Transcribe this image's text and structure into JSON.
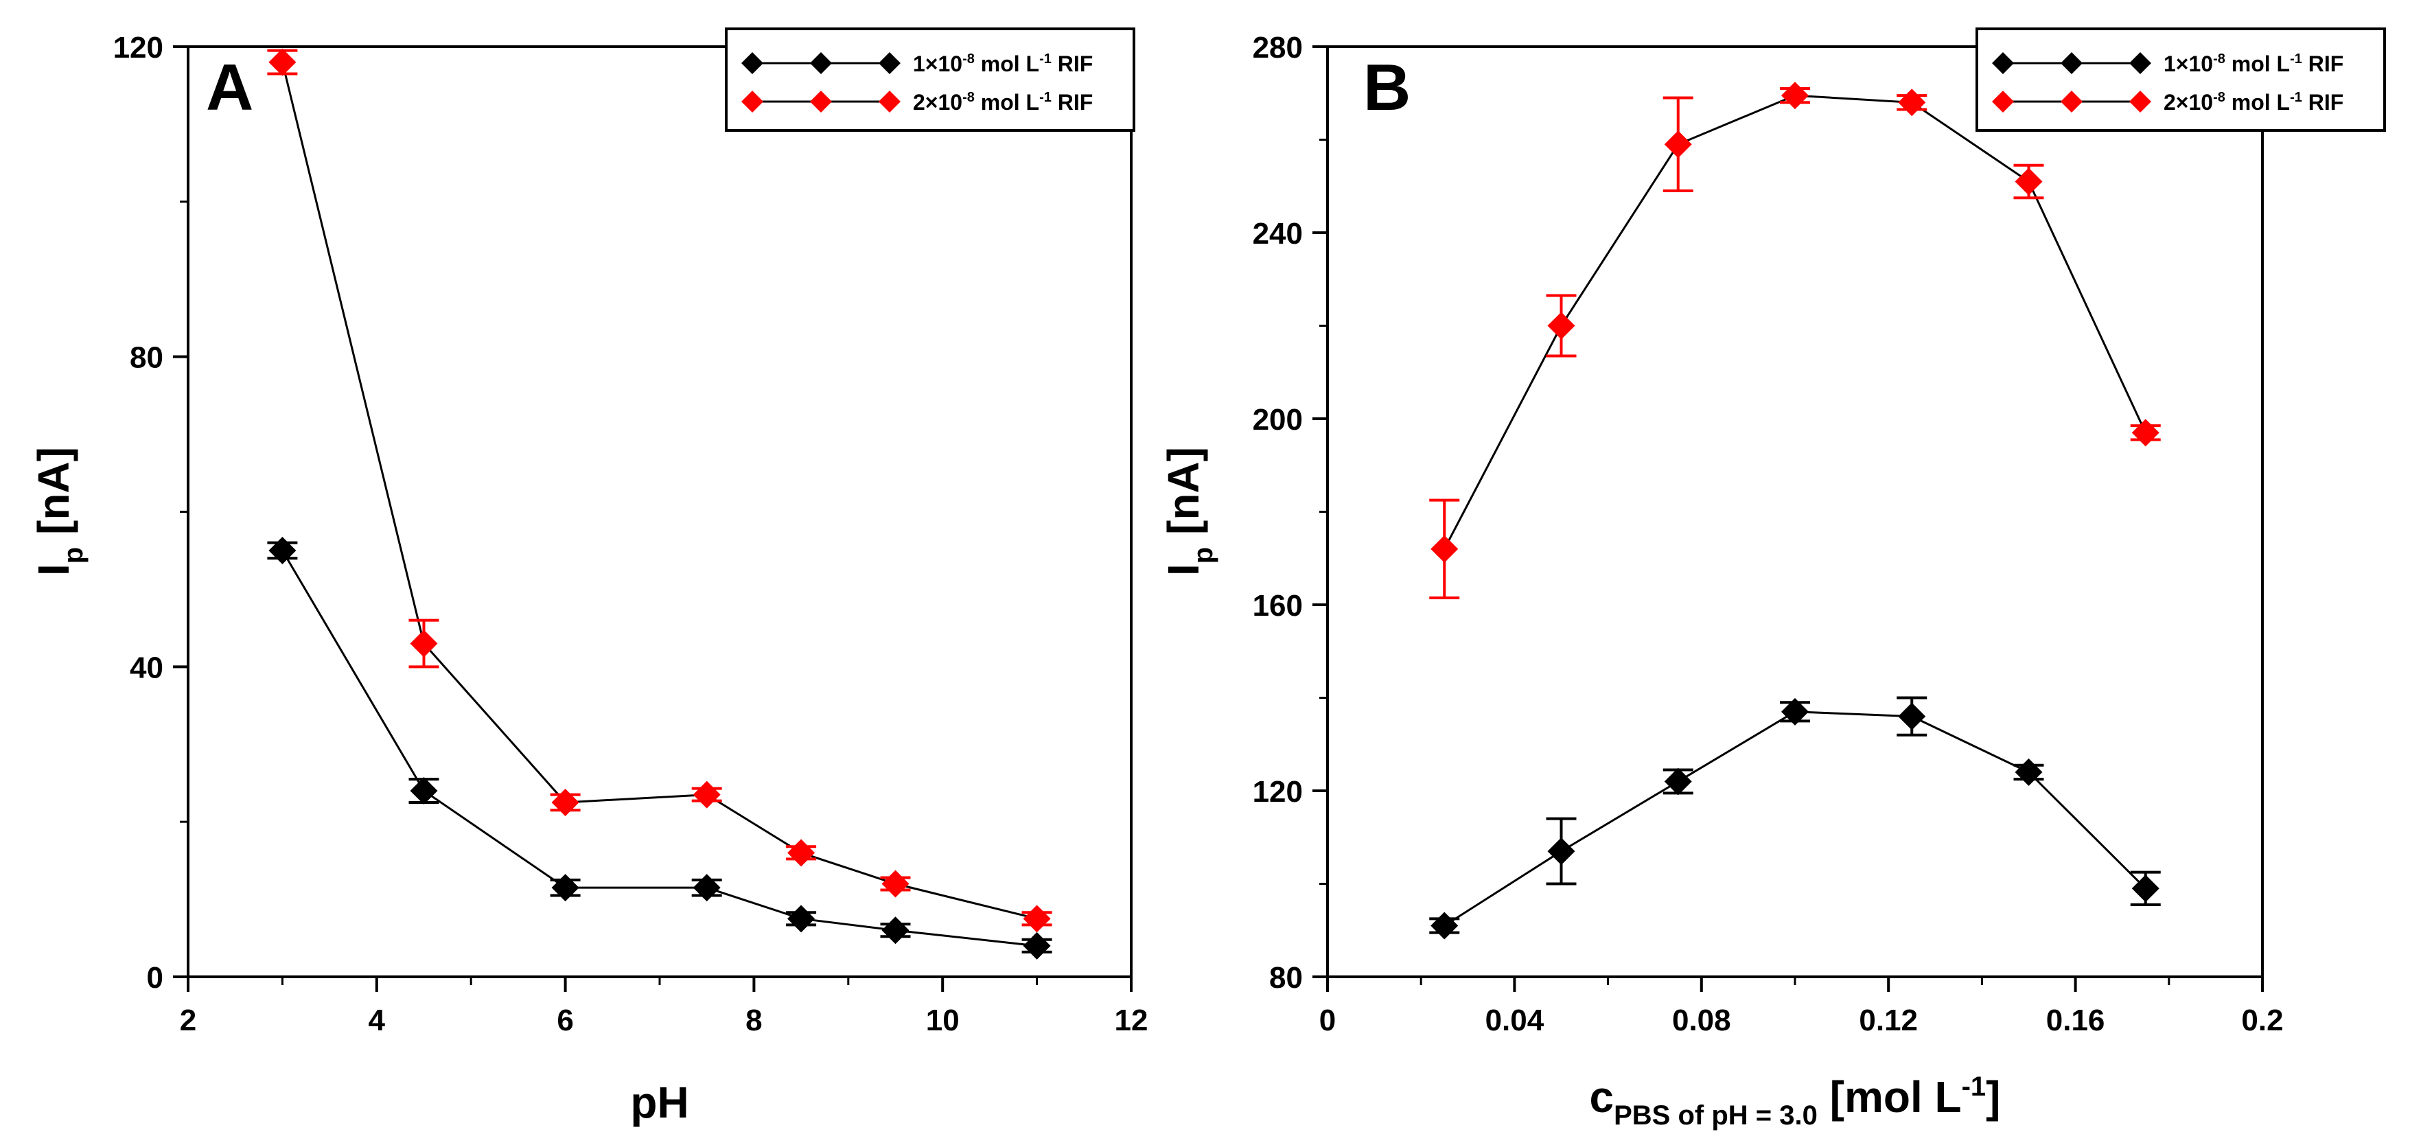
{
  "chart_data": [
    {
      "type": "line",
      "panel_label": "A",
      "xlabel": "pH",
      "ylabel_main": "I",
      "ylabel_sub": "p",
      "ylabel_rest": " [nA]",
      "xlim": [
        2,
        12
      ],
      "ylim": [
        0,
        120
      ],
      "xticks": [
        2,
        4,
        6,
        8,
        10,
        12
      ],
      "yticks": [
        0,
        40,
        80,
        120
      ],
      "grid": false,
      "legend_position": "top-right",
      "series": [
        {
          "name": "1×10⁻⁸ mol L⁻¹ RIF",
          "legend_main": "1×10",
          "legend_exp1": "-8",
          "legend_mid": " mol L",
          "legend_exp2": "-1",
          "legend_end": " RIF",
          "color": "#000000",
          "x": [
            3,
            4.5,
            6,
            7.5,
            8.5,
            9.5,
            11
          ],
          "y": [
            55,
            24,
            11.5,
            11.5,
            7.5,
            6,
            4
          ],
          "err": [
            1,
            1.5,
            1,
            1,
            0.8,
            0.8,
            0.8
          ]
        },
        {
          "name": "2×10⁻⁸ mol L⁻¹ RIF",
          "legend_main": "2×10",
          "legend_exp1": "-8",
          "legend_mid": " mol L",
          "legend_exp2": "-1",
          "legend_end": " RIF",
          "color": "#ff0000",
          "x": [
            3,
            4.5,
            6,
            7.5,
            8.5,
            9.5,
            11
          ],
          "y": [
            118,
            43,
            22.5,
            23.5,
            16,
            12,
            7.5
          ],
          "err": [
            1.5,
            3,
            1,
            0.8,
            0.8,
            0.8,
            0.8
          ]
        }
      ]
    },
    {
      "type": "line",
      "panel_label": "B",
      "xlabel_main": "c",
      "xlabel_sub": "PBS of pH = 3.0",
      "xlabel_rest": " [mol L",
      "xlabel_sup": "-1",
      "xlabel_close": "]",
      "ylabel_main": "I",
      "ylabel_sub": "p",
      "ylabel_rest": " [nA]",
      "xlim": [
        0,
        0.2
      ],
      "ylim": [
        80,
        280
      ],
      "xticks": [
        0,
        0.04,
        0.08,
        0.12,
        0.16,
        0.2
      ],
      "xticklabels": [
        "0",
        "0.04",
        "0.08",
        "0.12",
        "0.16",
        "0.2"
      ],
      "yticks": [
        80,
        120,
        160,
        200,
        240,
        280
      ],
      "grid": false,
      "legend_position": "top-right",
      "series": [
        {
          "name": "1×10⁻⁸ mol L⁻¹ RIF",
          "legend_main": "1×10",
          "legend_exp1": "-8",
          "legend_mid": " mol L",
          "legend_exp2": "-1",
          "legend_end": " RIF",
          "color": "#000000",
          "x": [
            0.025,
            0.05,
            0.075,
            0.1,
            0.125,
            0.15,
            0.175
          ],
          "y": [
            91,
            107,
            122,
            137,
            136,
            124,
            99
          ],
          "err": [
            1.5,
            7,
            2.5,
            2,
            4,
            1.5,
            3.5
          ]
        },
        {
          "name": "2×10⁻⁸ mol L⁻¹ RIF",
          "legend_main": "2×10",
          "legend_exp1": "-8",
          "legend_mid": " mol L",
          "legend_exp2": "-1",
          "legend_end": " RIF",
          "color": "#ff0000",
          "x": [
            0.025,
            0.05,
            0.075,
            0.1,
            0.125,
            0.15,
            0.175
          ],
          "y": [
            172,
            220,
            259,
            269.5,
            268,
            251,
            197
          ],
          "err": [
            10.5,
            6.5,
            10,
            1.5,
            1.5,
            3.5,
            1.5
          ]
        }
      ]
    }
  ]
}
